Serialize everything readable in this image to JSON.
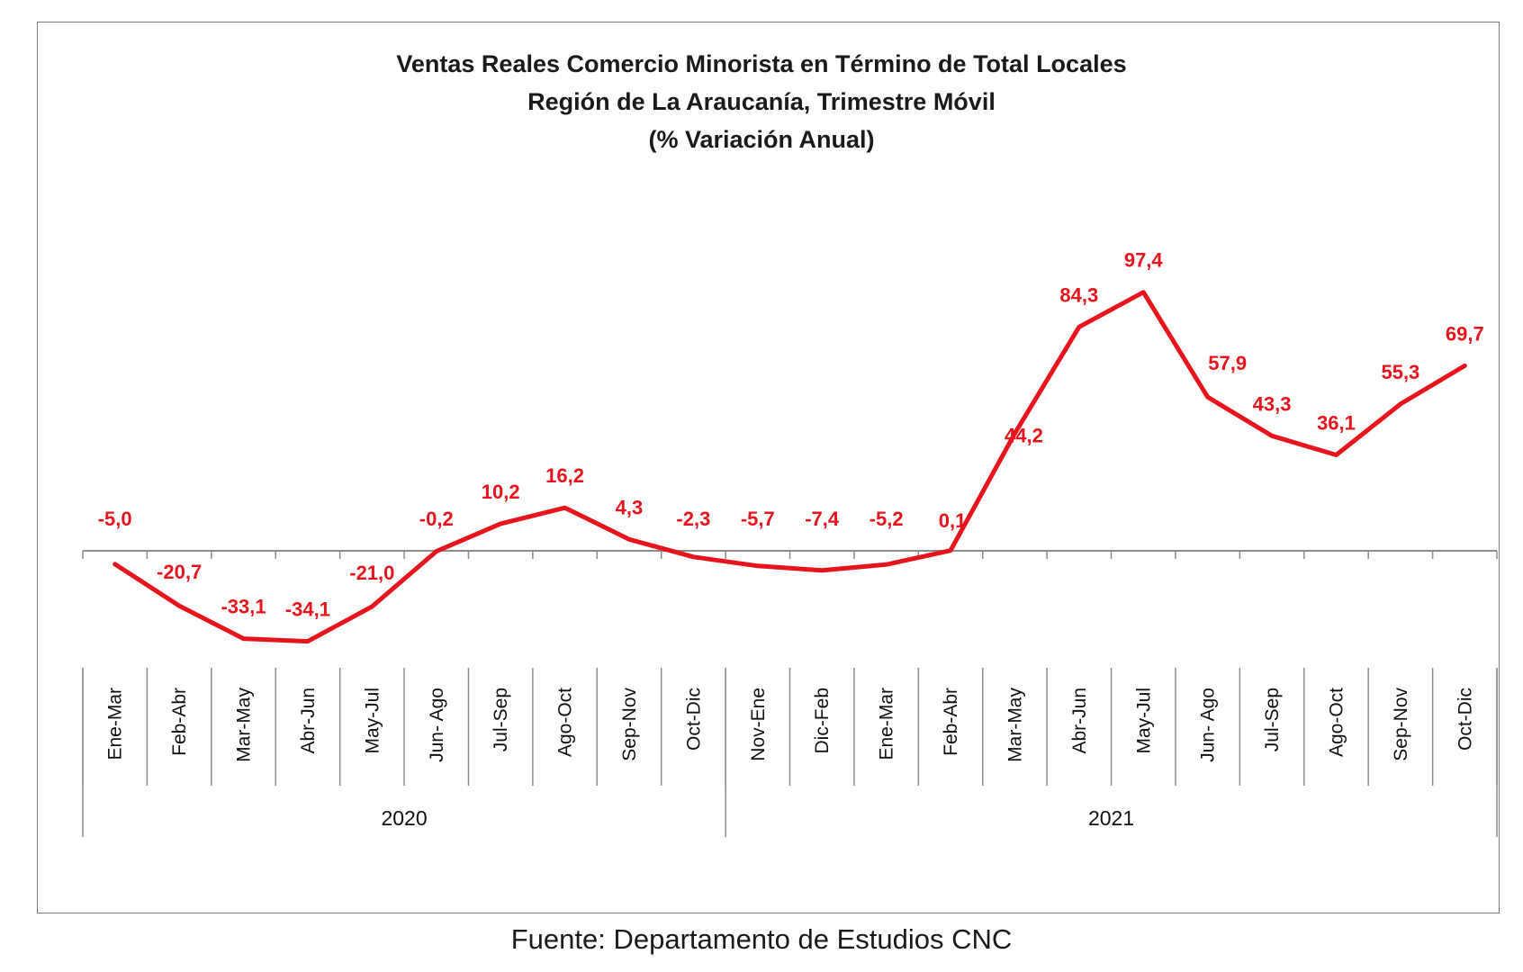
{
  "chart_data": {
    "type": "line",
    "title_lines": [
      "Ventas Reales Comercio Minorista  en Término de Total  Locales",
      "Región de La Araucanía, Trimestre Móvil",
      "(% Variación Anual)"
    ],
    "categories": [
      "Ene-Mar",
      "Feb-Abr",
      "Mar-May",
      "Abr-Jun",
      "May-Jul",
      "Jun- Ago",
      "Jul-Sep",
      "Ago-Oct",
      "Sep-Nov",
      "Oct-Dic",
      "Nov-Ene",
      "Dic-Feb",
      "Ene-Mar",
      "Feb-Abr",
      "Mar-May",
      "Abr-Jun",
      "May-Jul",
      "Jun- Ago",
      "Jul-Sep",
      "Ago-Oct",
      "Sep-Nov",
      "Oct-Dic"
    ],
    "groups": [
      {
        "label": "2020",
        "count": 10
      },
      {
        "label": "2021",
        "count": 12
      }
    ],
    "series": [
      {
        "values": [
          -5.0,
          -20.7,
          -33.1,
          -34.1,
          -21.0,
          -0.2,
          10.2,
          16.2,
          4.3,
          -2.3,
          -5.7,
          -7.4,
          -5.2,
          0.1,
          44.2,
          84.3,
          97.4,
          57.9,
          43.3,
          36.1,
          55.3,
          69.7
        ],
        "labels": [
          "-5,0",
          "-20,7",
          "-33,1",
          "-34,1",
          "-21,0",
          "-0,2",
          "10,2",
          "16,2",
          "4,3",
          "-2,3",
          "-5,7",
          "-7,4",
          "-5,2",
          "0,1",
          "44,2",
          "84,3",
          "97,4",
          "57,9",
          "43,3",
          "36,1",
          "55,3",
          "69,7"
        ],
        "color": "#e8141c"
      }
    ],
    "ylim": [
      -40,
      100
    ],
    "grid": false,
    "legend": "none"
  },
  "source_note": "Fuente: Departamento de Estudios CNC"
}
